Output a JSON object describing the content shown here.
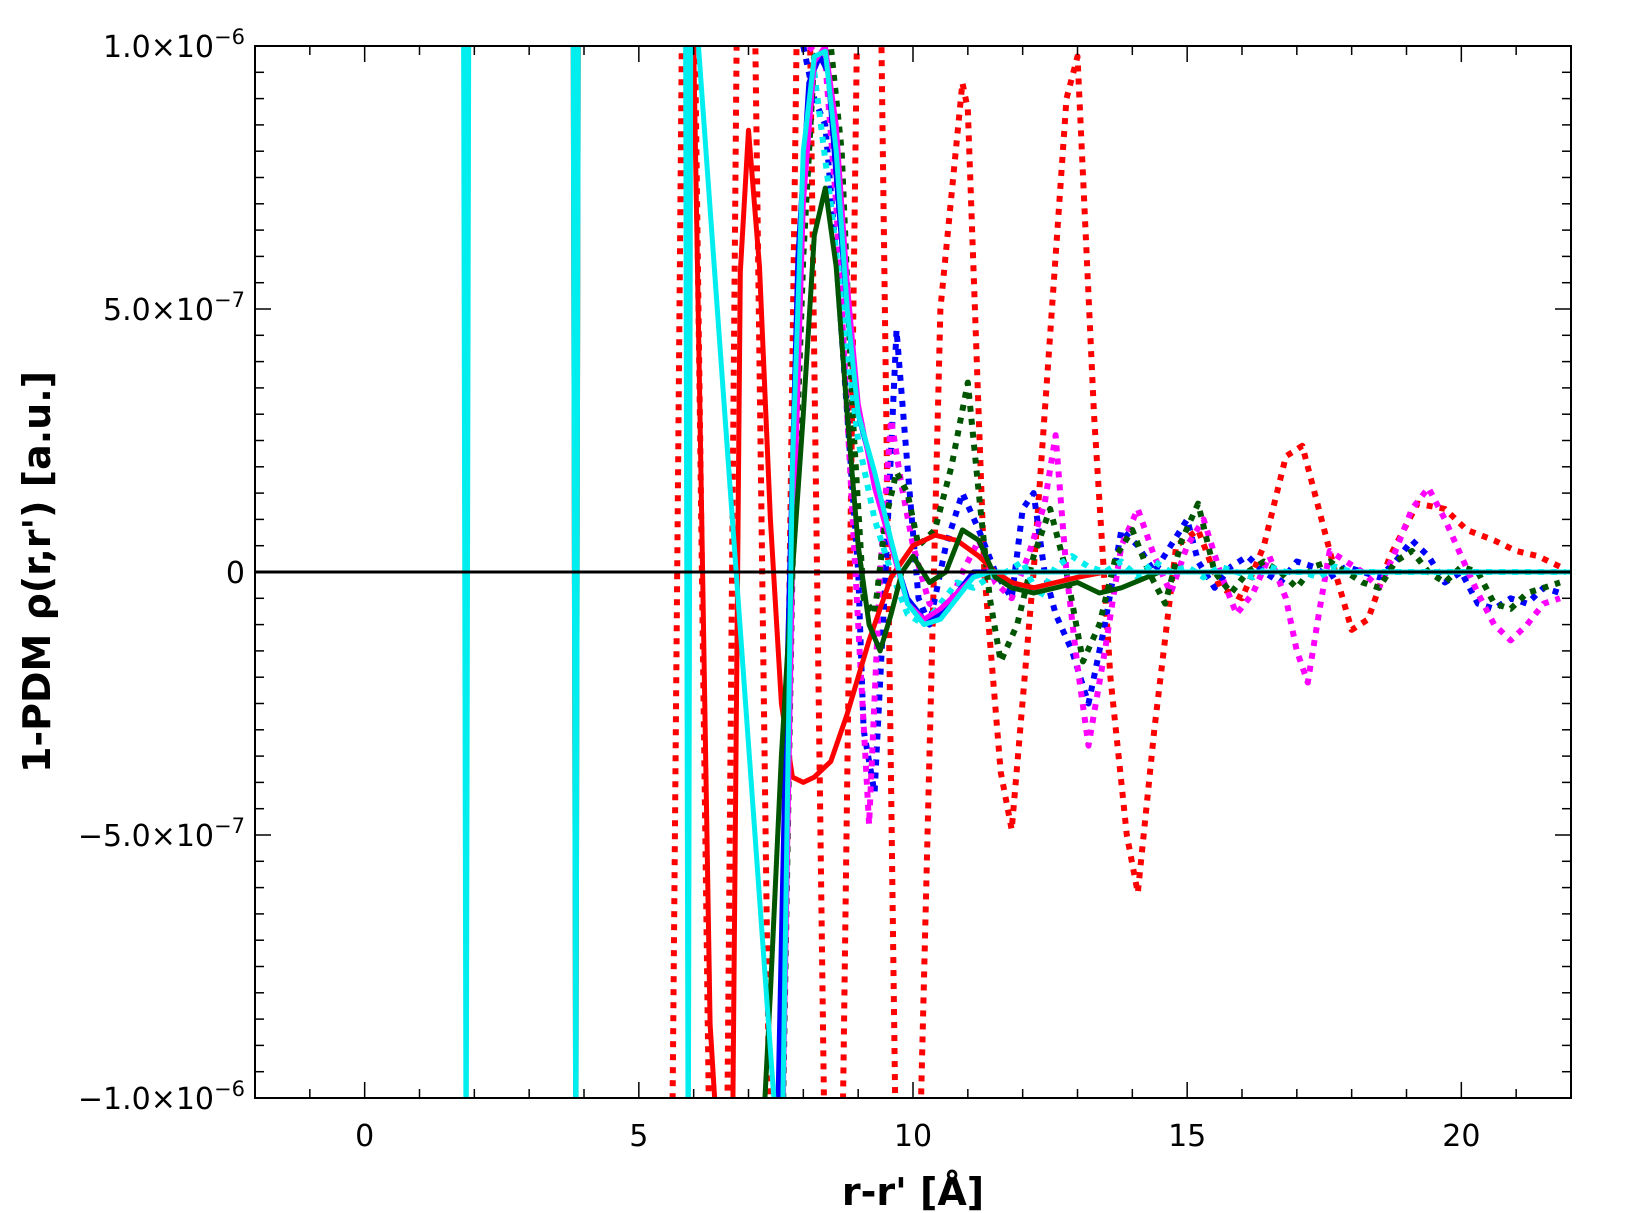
{
  "chart_data": {
    "type": "line",
    "xlabel": "r-r' [Å]",
    "ylabel": "1-PDM ρ(r,r') [a.u.]",
    "xlim": [
      -2,
      22
    ],
    "ylim": [
      -1e-06,
      1e-06
    ],
    "x_ticks": [
      {
        "value": 0,
        "label": "0"
      },
      {
        "value": 5,
        "label": "5"
      },
      {
        "value": 10,
        "label": "10"
      },
      {
        "value": 15,
        "label": "15"
      },
      {
        "value": 20,
        "label": "20"
      }
    ],
    "y_ticks": [
      {
        "value": -1e-06,
        "label": "−1.0×10",
        "exp": "−6"
      },
      {
        "value": -5e-07,
        "label": "−5.0×10",
        "exp": "−7"
      },
      {
        "value": 0,
        "label": "0",
        "exp": ""
      },
      {
        "value": 5e-07,
        "label": "5.0×10",
        "exp": "−7"
      },
      {
        "value": 1e-06,
        "label": "1.0×10",
        "exp": "−6"
      }
    ],
    "grid": false,
    "zero_line": true,
    "series": [
      {
        "color": "#ff0000",
        "style": "dotted",
        "x": [
          5.6,
          5.8,
          6.0,
          6.3,
          6.6,
          6.8,
          7.1,
          7.4,
          7.6,
          7.9,
          8.1,
          8.4,
          8.7,
          9.0,
          9.4,
          9.7,
          10.1,
          10.5,
          10.9,
          11.0,
          11.3,
          11.6,
          11.8,
          12.2,
          12.6,
          12.8,
          13.0,
          13.3,
          13.6,
          13.9,
          14.1,
          14.4,
          14.8,
          15.2,
          15.6,
          16.0,
          16.4,
          16.8,
          17.1,
          17.4,
          17.7,
          18.0,
          18.3,
          18.7,
          19.2,
          19.7,
          20.1,
          20.6,
          21.0,
          21.4,
          21.8
        ],
        "y": [
          -1.2e-06,
          1.2e-06,
          1.2e-06,
          -1.2e-06,
          -1.2e-06,
          1.2e-06,
          1.2e-06,
          -1.2e-06,
          -1.2e-06,
          1.2e-06,
          1.2e-06,
          -1.2e-06,
          -1.2e-06,
          1.2e-06,
          1.2e-06,
          -1.2e-06,
          -1.2e-06,
          5e-07,
          9.3e-07,
          8.8e-07,
          0.0,
          -3.8e-07,
          -4.9e-07,
          0.0,
          6e-07,
          9e-07,
          9.8e-07,
          3e-07,
          -2e-07,
          -5e-07,
          -6.1e-07,
          -3e-07,
          5e-08,
          8e-08,
          -3e-08,
          -5e-08,
          5e-08,
          2.2e-07,
          2.4e-07,
          1.2e-07,
          0.0,
          -1.1e-07,
          -9e-08,
          3e-08,
          1.3e-07,
          1.2e-07,
          8e-08,
          6e-08,
          4e-08,
          3e-08,
          1e-08
        ]
      },
      {
        "color": "#0000ff",
        "style": "dotted",
        "x": [
          8.0,
          8.2,
          8.4,
          8.6,
          8.8,
          9.0,
          9.1,
          9.3,
          9.5,
          9.7,
          9.9,
          10.1,
          10.3,
          10.6,
          10.9,
          11.2,
          11.5,
          11.8,
          12.0,
          12.2,
          12.4,
          12.6,
          12.9,
          13.2,
          13.5,
          13.8,
          14.1,
          14.4,
          14.7,
          15.0,
          15.2,
          15.5,
          15.8,
          16.1,
          16.4,
          16.7,
          17.0,
          17.3,
          17.6,
          17.9,
          18.2,
          18.5,
          18.8,
          19.1,
          19.4,
          19.7,
          20.0,
          20.3,
          20.6,
          20.9,
          21.2,
          21.5,
          21.8
        ],
        "y": [
          1e-06,
          9e-07,
          8.5e-07,
          6e-07,
          3e-07,
          0.0,
          -3e-07,
          -4.2e-07,
          0.0,
          4.6e-07,
          2e-07,
          -5e-08,
          -1e-07,
          5e-08,
          1.5e-07,
          8e-08,
          0.0,
          -5e-08,
          1.2e-07,
          1.5e-07,
          0.0,
          -8e-08,
          -1.5e-07,
          -2.5e-07,
          -1e-07,
          8e-08,
          5e-08,
          0.0,
          5e-08,
          1e-07,
          2e-08,
          -3e-08,
          1e-08,
          3e-08,
          0.0,
          -2e-08,
          2e-08,
          1e-08,
          -1e-08,
          1e-08,
          0.0,
          -1e-08,
          2e-08,
          6e-08,
          3e-08,
          -2e-08,
          0.0,
          -6e-08,
          -7e-08,
          -5e-08,
          -6e-08,
          -3e-08,
          -4e-08
        ]
      },
      {
        "color": "#ff00ff",
        "style": "dotted",
        "x": [
          8.1,
          8.4,
          8.6,
          8.8,
          9.0,
          9.2,
          9.4,
          9.6,
          9.8,
          10.0,
          10.3,
          10.6,
          10.9,
          11.2,
          11.5,
          11.8,
          12.1,
          12.4,
          12.6,
          12.8,
          13.0,
          13.2,
          13.5,
          13.8,
          14.1,
          14.4,
          14.7,
          15.0,
          15.3,
          15.6,
          15.9,
          16.2,
          16.5,
          16.8,
          17.0,
          17.2,
          17.4,
          17.6,
          17.9,
          18.2,
          18.5,
          18.8,
          19.1,
          19.4,
          19.7,
          20.0,
          20.3,
          20.6,
          20.9,
          21.2,
          21.5,
          21.8
        ],
        "y": [
          1e-06,
          9.7e-07,
          7e-07,
          3e-07,
          -1e-07,
          -4.8e-07,
          0.0,
          2.9e-07,
          1.6e-07,
          5e-08,
          -6e-08,
          -8e-08,
          0.0,
          6e-08,
          -2e-08,
          -5e-08,
          3e-08,
          1.3e-07,
          2.6e-07,
          0.0,
          -1.8e-07,
          -3.3e-07,
          -1.5e-07,
          5e-08,
          1.2e-07,
          3e-08,
          -4e-08,
          5e-08,
          1e-07,
          0.0,
          -8e-08,
          -4e-08,
          3e-08,
          -5e-08,
          -1.5e-07,
          -2.1e-07,
          -8e-08,
          4e-08,
          2e-08,
          0.0,
          -3e-08,
          4e-08,
          1.2e-07,
          1.6e-07,
          1e-07,
          3e-08,
          -4e-08,
          -1e-07,
          -1.3e-07,
          -1e-07,
          -6e-08,
          -5e-08
        ]
      },
      {
        "color": "#005500",
        "style": "dotted",
        "x": [
          7.6,
          7.8,
          8.0,
          8.2,
          8.5,
          8.7,
          8.9,
          9.1,
          9.3,
          9.5,
          9.7,
          9.9,
          10.1,
          10.4,
          10.7,
          11.0,
          11.2,
          11.4,
          11.6,
          11.9,
          12.2,
          12.5,
          12.8,
          13.1,
          13.4,
          13.7,
          14.0,
          14.3,
          14.6,
          14.9,
          15.2,
          15.5,
          15.8,
          16.1,
          16.4,
          16.7,
          17.0,
          17.3,
          17.6,
          17.9,
          18.2,
          18.5,
          18.8,
          19.1,
          19.4,
          19.7,
          20.0,
          20.3,
          20.6,
          20.9,
          21.2,
          21.5,
          21.8
        ],
        "y": [
          -1.2e-06,
          0.0,
          6e-07,
          9.8e-07,
          1e-06,
          8e-07,
          3e-07,
          -5e-08,
          -8e-08,
          1e-07,
          1.9e-07,
          1.5e-07,
          5e-08,
          8e-08,
          2e-07,
          3.6e-07,
          1.5e-07,
          -5e-08,
          -1.7e-07,
          -1e-07,
          3e-08,
          1.2e-07,
          0.0,
          -1.7e-07,
          -1e-07,
          3e-08,
          8e-08,
          0.0,
          -6e-08,
          6e-08,
          1.3e-07,
          0.0,
          -4e-08,
          0.0,
          2e-08,
          0.0,
          -3e-08,
          1e-08,
          2e-08,
          0.0,
          -2e-08,
          -3e-08,
          2e-08,
          4e-08,
          0.0,
          -2e-08,
          1e-08,
          0.0,
          -6e-08,
          -7e-08,
          -4e-08,
          -3e-08,
          -2e-08
        ]
      },
      {
        "color": "#00eeee",
        "style": "dotted",
        "x": [
          8.2,
          8.5,
          8.8,
          9.0,
          9.3,
          9.6,
          9.9,
          10.2,
          10.5,
          10.8,
          11.1,
          11.4,
          11.7,
          12.0,
          12.3,
          12.6,
          12.9,
          13.2,
          13.5,
          13.8,
          14.1,
          14.4,
          14.7,
          15.0,
          15.3,
          15.6,
          15.9,
          16.2,
          16.5,
          16.8,
          17.1,
          17.4,
          17.7,
          18.0,
          18.3,
          18.6,
          18.9,
          19.2,
          19.5,
          19.8,
          20.1,
          20.4,
          20.7,
          21.0,
          21.3,
          21.6,
          21.9
        ],
        "y": [
          9.5e-07,
          7e-07,
          4.2e-07,
          2.5e-07,
          1e-07,
          0.0,
          -8e-08,
          -1e-07,
          -6e-08,
          -2e-08,
          -3e-08,
          -1e-08,
          0.0,
          2e-08,
          -5e-08,
          1e-08,
          3e-08,
          1e-08,
          0.0,
          2e-08,
          -1e-08,
          2e-08,
          0.0,
          1e-08,
          -1e-08,
          1e-08,
          0.0,
          -1e-08,
          1e-08,
          0.0,
          0.0,
          -1e-08,
          1e-08,
          0.0,
          0.0,
          0.0,
          0.0,
          0.0,
          0.0,
          0.0,
          0.0,
          0.0,
          0.0,
          0.0,
          0.0,
          0.0,
          0.0
        ]
      },
      {
        "color": "#ff0000",
        "style": "solid",
        "x": [
          3.8,
          3.85,
          3.9,
          5.9,
          6.0,
          6.1,
          6.3,
          6.5,
          6.7,
          6.85,
          7.0,
          7.2,
          7.4,
          7.6,
          7.8,
          8.0,
          8.2,
          8.5,
          8.8,
          9.2,
          9.6,
          10.0,
          10.4,
          10.8,
          11.2,
          11.5,
          11.8,
          12.2,
          12.6,
          13.0,
          13.5,
          14.0,
          15.0,
          16.0,
          18.0,
          20.0,
          22.0
        ],
        "y": [
          1.2e-06,
          -1.2e-06,
          1.2e-06,
          1.2e-06,
          1e-06,
          4e-07,
          -8.6e-07,
          -1.2e-06,
          -1.2e-06,
          5.7e-07,
          8.4e-07,
          5.8e-07,
          1e-07,
          -2.5e-07,
          -3.9e-07,
          -4e-07,
          -3.9e-07,
          -3.6e-07,
          -2.7e-07,
          -1.3e-07,
          -1e-08,
          5e-08,
          7e-08,
          6e-08,
          3e-08,
          0.0,
          -2e-08,
          -3e-08,
          -2e-08,
          -1e-08,
          0.0,
          0.0,
          0.0,
          0.0,
          0.0,
          0.0,
          0.0
        ]
      },
      {
        "color": "#0000ff",
        "style": "solid",
        "x": [
          7.5,
          7.7,
          7.9,
          8.1,
          8.3,
          8.45,
          8.6,
          8.8,
          9.0,
          9.3,
          9.6,
          9.9,
          10.2,
          10.5,
          10.8,
          11.1,
          11.4,
          11.8,
          12.2,
          13.0,
          14.0,
          16.0,
          18.0,
          20.0,
          22.0
        ],
        "y": [
          -1.2e-06,
          -2e-07,
          6e-07,
          9.3e-07,
          9.8e-07,
          9.5e-07,
          7.5e-07,
          5e-07,
          3e-07,
          1.8e-07,
          5e-08,
          -5e-08,
          -9e-08,
          -8e-08,
          -4e-08,
          0.0,
          0.0,
          0.0,
          0.0,
          0.0,
          0.0,
          0.0,
          0.0,
          0.0,
          0.0
        ]
      },
      {
        "color": "#ff00ff",
        "style": "solid",
        "x": [
          7.6,
          7.8,
          8.0,
          8.2,
          8.4,
          8.6,
          8.8,
          9.0,
          9.3,
          9.6,
          9.9,
          10.2,
          10.5,
          10.8,
          11.1,
          11.4,
          11.8,
          12.2,
          13.0,
          14.0,
          16.0,
          18.0,
          20.0,
          22.0
        ],
        "y": [
          -1.2e-06,
          0.0,
          7e-07,
          9.7e-07,
          1e-06,
          8.5e-07,
          5.5e-07,
          3.2e-07,
          1.6e-07,
          5e-08,
          -6e-08,
          -9e-08,
          -7e-08,
          -4e-08,
          -1e-08,
          0.0,
          0.0,
          0.0,
          0.0,
          0.0,
          0.0,
          0.0,
          0.0,
          0.0
        ]
      },
      {
        "color": "#005500",
        "style": "solid",
        "x": [
          7.2,
          7.4,
          7.6,
          7.8,
          8.0,
          8.2,
          8.4,
          8.6,
          8.8,
          9.0,
          9.2,
          9.4,
          9.6,
          9.8,
          10.0,
          10.3,
          10.6,
          10.9,
          11.2,
          11.5,
          11.8,
          12.2,
          12.6,
          13.0,
          13.4,
          13.8,
          14.5,
          15.5,
          17.0,
          19.0,
          21.0,
          22.0
        ],
        "y": [
          -1.2e-06,
          -8e-07,
          -3.5e-07,
          0.0,
          3e-07,
          6.4e-07,
          7.3e-07,
          5.8e-07,
          3e-07,
          5e-08,
          -1e-07,
          -1.5e-07,
          -8e-08,
          0.0,
          3e-08,
          -2e-08,
          0.0,
          8e-08,
          6e-08,
          -1e-08,
          -3e-08,
          -4e-08,
          -3e-08,
          -2e-08,
          -4e-08,
          -3e-08,
          0.0,
          0.0,
          0.0,
          0.0,
          0.0,
          0.0
        ]
      },
      {
        "color": "#00eeee",
        "style": "solid",
        "x": [
          1.8,
          1.85,
          1.9,
          3.8,
          3.85,
          3.9,
          5.85,
          5.9,
          5.95,
          7.6,
          7.8,
          8.0,
          8.2,
          8.4,
          8.6,
          8.8,
          9.0,
          9.3,
          9.6,
          9.9,
          10.2,
          10.5,
          10.8,
          11.1,
          11.4,
          11.8,
          12.2,
          13.0,
          14.0,
          16.0,
          18.0,
          20.0,
          22.0
        ],
        "y": [
          1.2e-06,
          -1.2e-06,
          1.2e-06,
          1.2e-06,
          -1.2e-06,
          1.2e-06,
          1.2e-06,
          -1.2e-06,
          1.2e-06,
          -1.2e-06,
          2e-07,
          8e-07,
          9.8e-07,
          9.9e-07,
          8e-07,
          5e-07,
          3e-07,
          1.9e-07,
          6e-08,
          -6e-08,
          -1e-07,
          -9e-08,
          -5e-08,
          -1e-08,
          0.0,
          0.0,
          0.0,
          0.0,
          0.0,
          0.0,
          0.0,
          0.0,
          0.0
        ]
      }
    ]
  }
}
